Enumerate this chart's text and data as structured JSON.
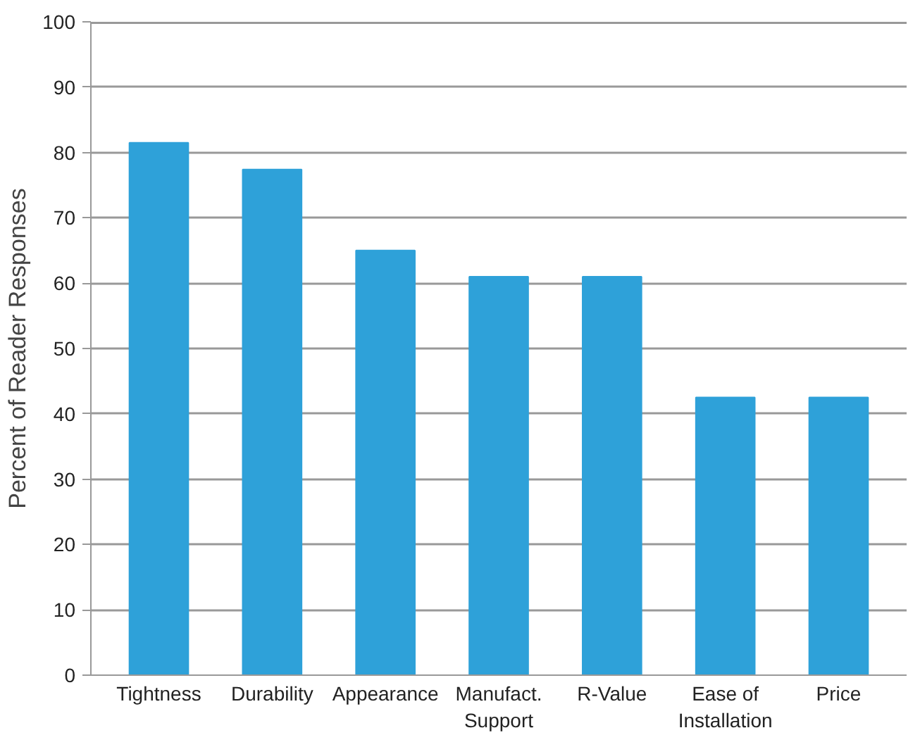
{
  "chart_data": {
    "type": "bar",
    "ylabel": "Percent of Reader Responses",
    "categories": [
      "Tightness",
      "Durability",
      "Appearance",
      "Manufact.\nSupport",
      "R-Value",
      "Ease of\nInstallation",
      "Price"
    ],
    "values": [
      81.5,
      77.4,
      65,
      61,
      61,
      42.5,
      42.5
    ],
    "color": "#2ea1d9",
    "ylim": [
      0,
      100
    ],
    "yticks": [
      0,
      10,
      20,
      30,
      40,
      50,
      60,
      70,
      80,
      90,
      100
    ],
    "grid": "y"
  }
}
